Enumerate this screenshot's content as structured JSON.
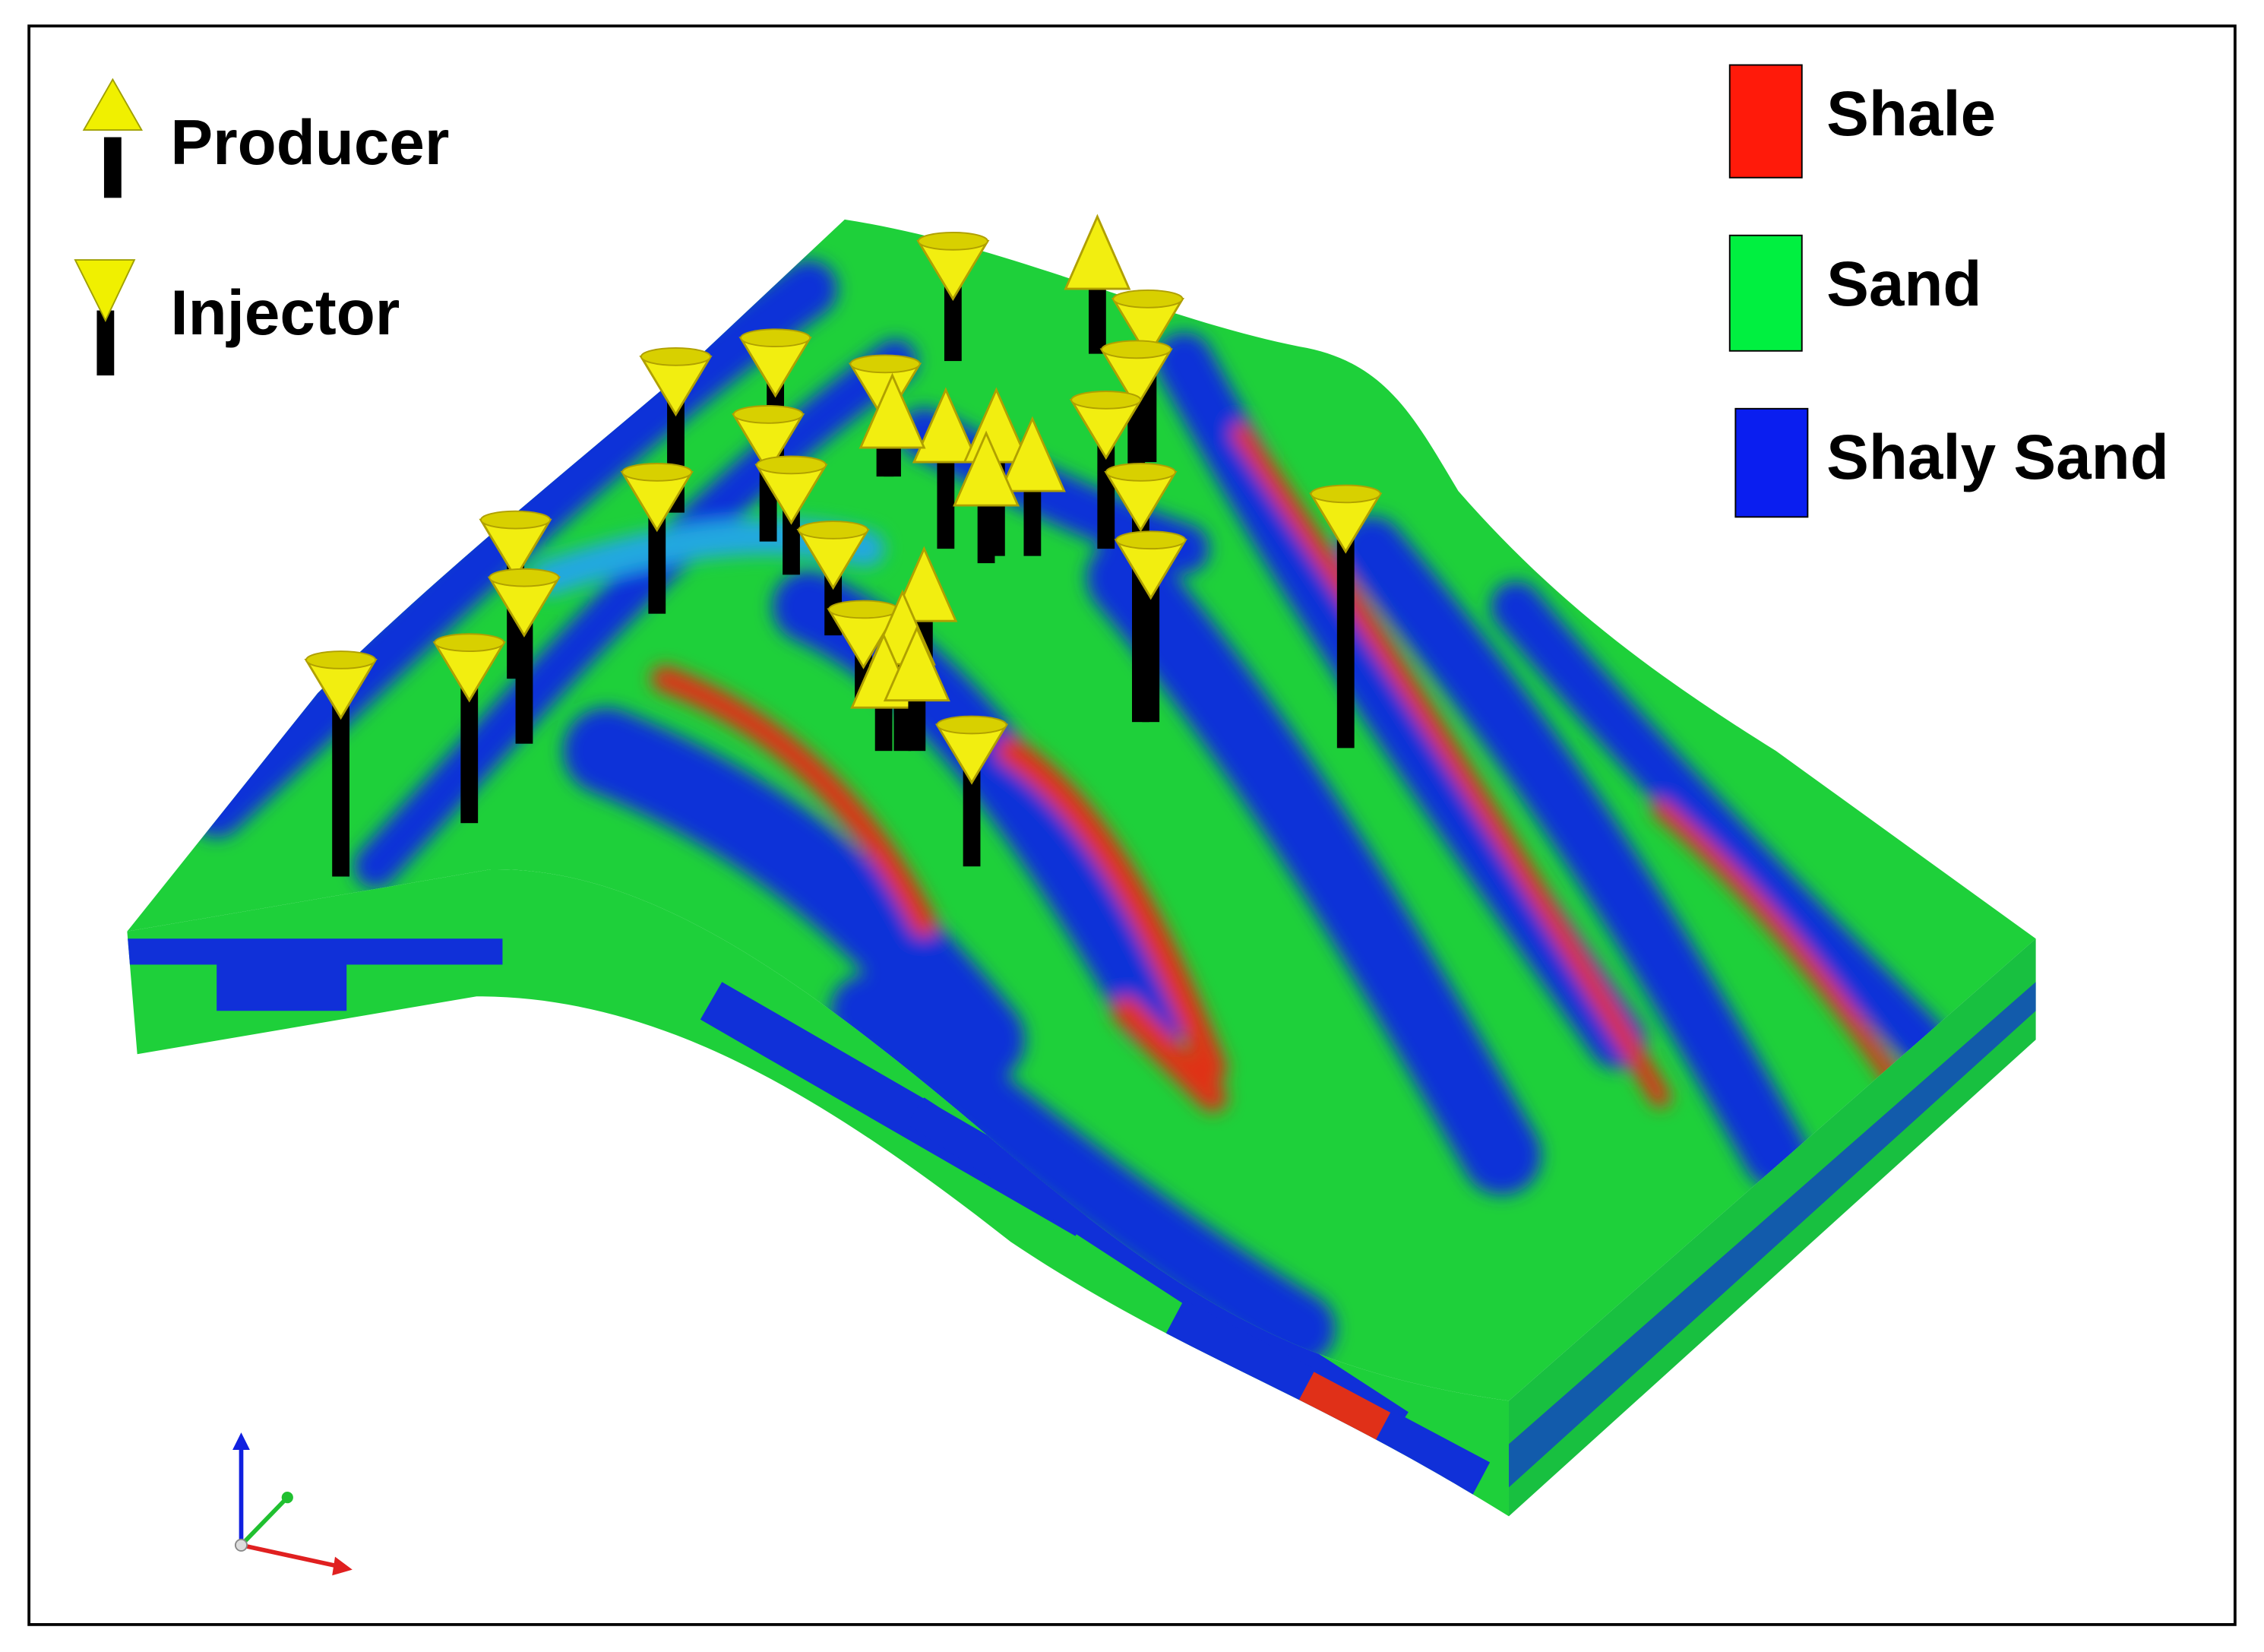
{
  "legend_wells": {
    "producer": "Producer",
    "injector": "Injector"
  },
  "legend_facies": {
    "shale": "Shale",
    "sand": "Sand",
    "shaly_sand": "Shaly Sand"
  }
}
